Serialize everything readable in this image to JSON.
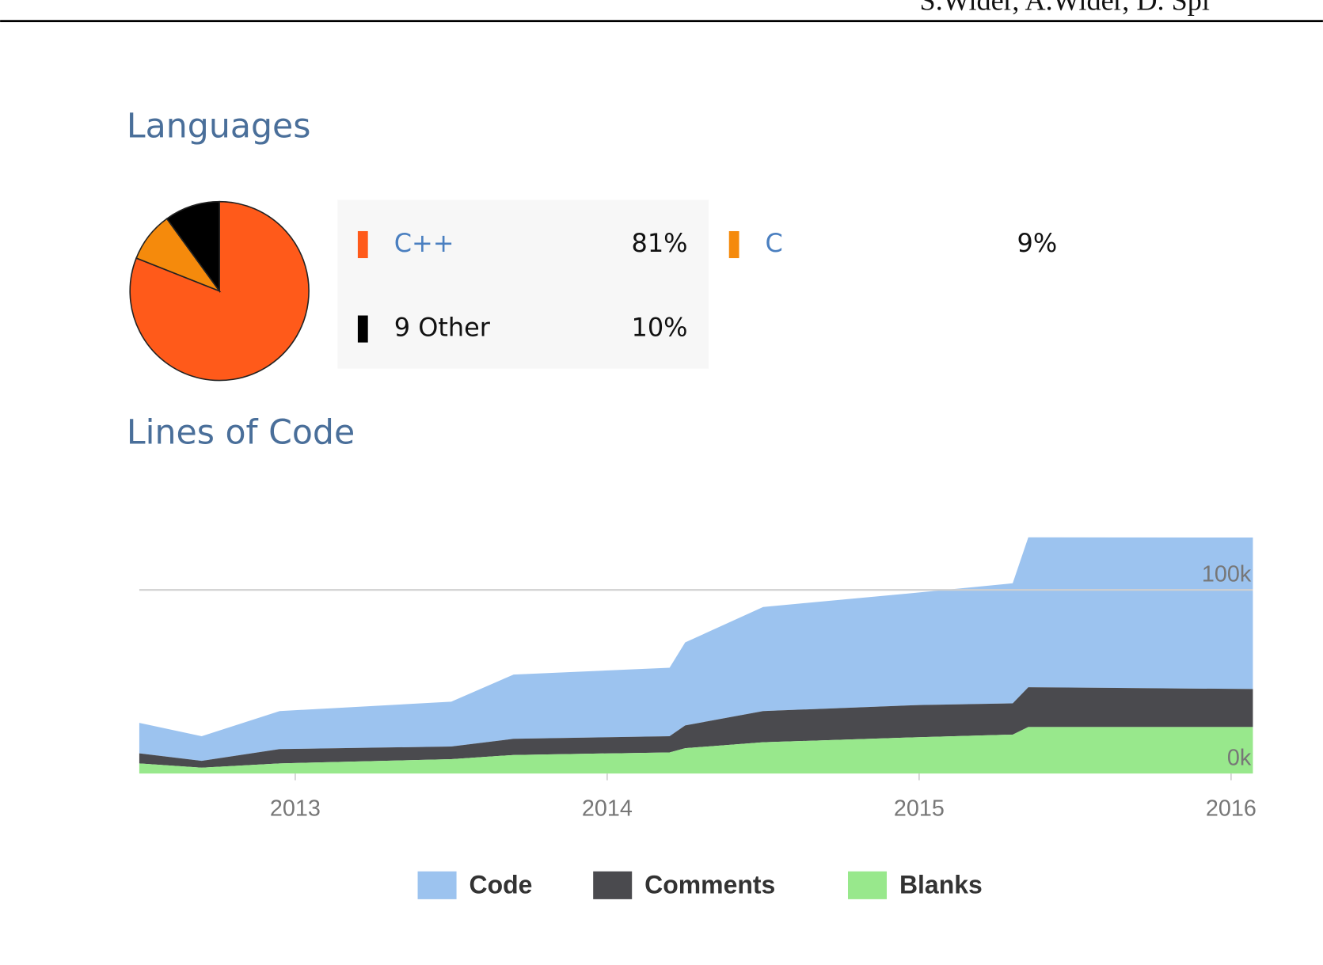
{
  "header": {
    "text": "S.Wider, A.Wider, D. Spi"
  },
  "chart_data": [
    {
      "type": "pie",
      "title": "Languages",
      "categories": [
        "C++",
        "C",
        "9 Other"
      ],
      "values": [
        81,
        9,
        10
      ],
      "value_labels": [
        "81%",
        "9%",
        "10%"
      ],
      "colors": [
        "#ff5a1a",
        "#f58a0c",
        "#000000"
      ]
    },
    {
      "type": "area",
      "title": "Lines of Code",
      "stacked": true,
      "grid": true,
      "x": [
        2012.5,
        2012.7,
        2012.95,
        2013.5,
        2013.7,
        2014.2,
        2014.25,
        2014.5,
        2015.0,
        2015.3,
        2015.35,
        2016.07
      ],
      "series": [
        {
          "name": "Code",
          "color": "#9cc3ef",
          "values": [
            16600,
            13400,
            20700,
            24400,
            35000,
            37300,
            45200,
            56700,
            61300,
            65400,
            81600,
            82500
          ]
        },
        {
          "name": "Comments",
          "color": "#4a4a4e",
          "values": [
            5500,
            3700,
            7800,
            6900,
            8800,
            8800,
            12400,
            17000,
            17500,
            17000,
            21700,
            20700
          ]
        },
        {
          "name": "Blanks",
          "color": "#98e88c",
          "values": [
            5500,
            3200,
            5500,
            7800,
            10100,
            11500,
            13800,
            17000,
            19800,
            21200,
            25300,
            25300
          ]
        }
      ],
      "xlim": [
        2012.5,
        2016.07
      ],
      "xticks": [
        2013,
        2014,
        2015,
        2016
      ],
      "ylim": [
        0,
        130000
      ],
      "yticks": [
        {
          "value": 0,
          "label": "0k"
        },
        {
          "value": 100000,
          "label": "100k"
        }
      ]
    }
  ]
}
